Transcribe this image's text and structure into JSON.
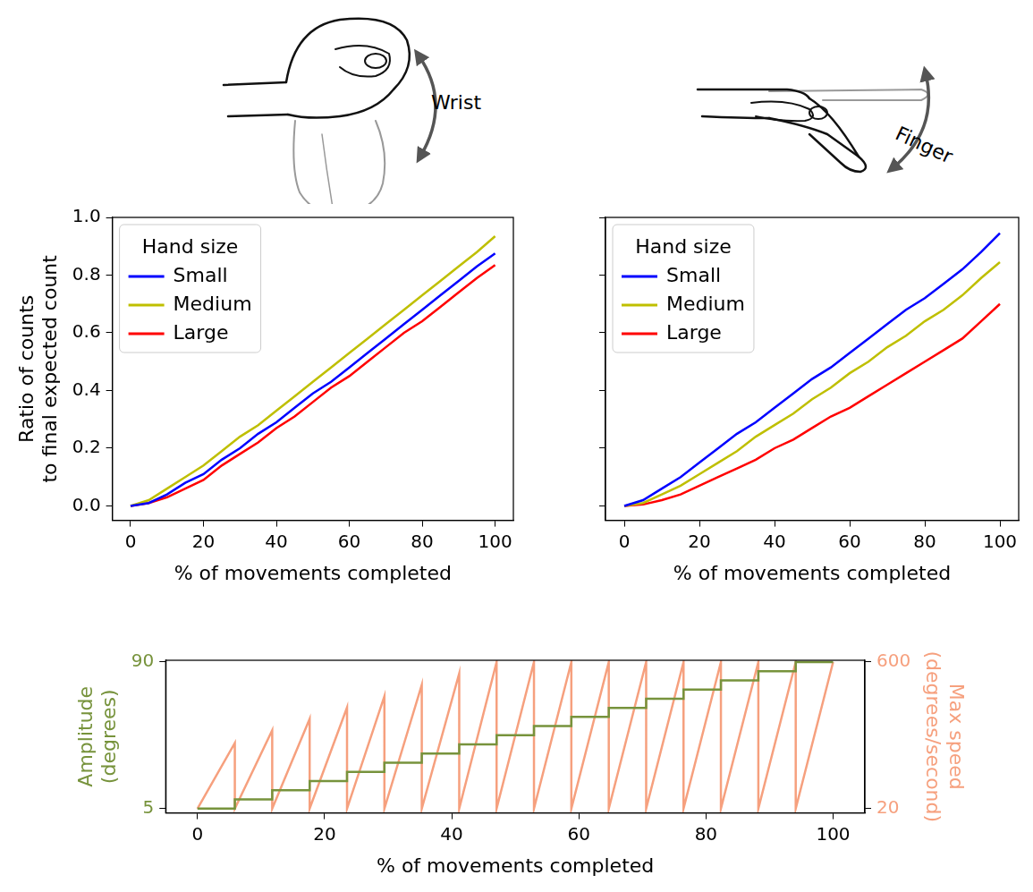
{
  "chart_data": [
    {
      "type": "line",
      "illustration_label": "Wrist",
      "x": [
        0,
        5,
        10,
        15,
        20,
        25,
        30,
        35,
        40,
        45,
        50,
        55,
        60,
        65,
        70,
        75,
        80,
        85,
        90,
        95,
        100
      ],
      "series": [
        {
          "name": "Small",
          "color": "#0000ff",
          "values": [
            0,
            0.01,
            0.04,
            0.08,
            0.11,
            0.16,
            0.2,
            0.25,
            0.29,
            0.34,
            0.39,
            0.43,
            0.48,
            0.53,
            0.58,
            0.63,
            0.68,
            0.73,
            0.78,
            0.83,
            0.875
          ]
        },
        {
          "name": "Medium",
          "color": "#bfbf00",
          "values": [
            0,
            0.02,
            0.06,
            0.1,
            0.14,
            0.19,
            0.24,
            0.28,
            0.33,
            0.38,
            0.43,
            0.48,
            0.53,
            0.58,
            0.63,
            0.68,
            0.73,
            0.78,
            0.83,
            0.88,
            0.935
          ]
        },
        {
          "name": "Large",
          "color": "#ff0000",
          "values": [
            0,
            0.01,
            0.03,
            0.06,
            0.09,
            0.14,
            0.18,
            0.22,
            0.27,
            0.31,
            0.36,
            0.41,
            0.45,
            0.5,
            0.55,
            0.6,
            0.64,
            0.69,
            0.74,
            0.79,
            0.835
          ]
        }
      ],
      "xlabel": "% of movements completed",
      "ylabel": [
        "Ratio of counts",
        "to final expected count"
      ],
      "xlim": [
        -5,
        105
      ],
      "xticks": [
        0,
        20,
        40,
        60,
        80,
        100
      ],
      "ylim": [
        -0.05,
        1.0
      ],
      "yticks": [
        {
          "value": 0,
          "label": "0.0"
        },
        0.2,
        0.4,
        0.6,
        0.8,
        {
          "value": 1,
          "label": "1.0"
        }
      ],
      "grid": false,
      "legend": "upper left",
      "legend_title": "Hand size"
    },
    {
      "type": "line",
      "illustration_label": "Finger",
      "x": [
        0,
        5,
        10,
        15,
        20,
        25,
        30,
        35,
        40,
        45,
        50,
        55,
        60,
        65,
        70,
        75,
        80,
        85,
        90,
        95,
        100
      ],
      "series": [
        {
          "name": "Small",
          "color": "#0000ff",
          "values": [
            0,
            0.02,
            0.06,
            0.1,
            0.15,
            0.2,
            0.25,
            0.29,
            0.34,
            0.39,
            0.44,
            0.48,
            0.53,
            0.58,
            0.63,
            0.68,
            0.72,
            0.77,
            0.82,
            0.88,
            0.945
          ]
        },
        {
          "name": "Medium",
          "color": "#bfbf00",
          "values": [
            0,
            0.01,
            0.04,
            0.07,
            0.11,
            0.15,
            0.19,
            0.24,
            0.28,
            0.32,
            0.37,
            0.41,
            0.46,
            0.5,
            0.55,
            0.59,
            0.64,
            0.68,
            0.73,
            0.79,
            0.845
          ]
        },
        {
          "name": "Large",
          "color": "#ff0000",
          "values": [
            0,
            0.005,
            0.02,
            0.04,
            0.07,
            0.1,
            0.13,
            0.16,
            0.2,
            0.23,
            0.27,
            0.31,
            0.34,
            0.38,
            0.42,
            0.46,
            0.5,
            0.54,
            0.58,
            0.64,
            0.7
          ]
        }
      ],
      "xlabel": "% of movements completed",
      "xlim": [
        -5,
        105
      ],
      "xticks": [
        0,
        20,
        40,
        60,
        80,
        100
      ],
      "ylim": [
        -0.05,
        1.0
      ],
      "yticks": [
        {
          "value": 0,
          "label": "0.0"
        },
        0.2,
        0.4,
        0.6,
        0.8,
        {
          "value": 1,
          "label": "1.0"
        }
      ],
      "tick_labels": "x",
      "grid": false,
      "legend": "upper left",
      "legend_title": "Hand size"
    },
    {
      "type": "line",
      "series": [
        {
          "color": "#77933c",
          "axis": "y",
          "x": [
            0,
            5.88,
            5.88,
            11.76,
            11.76,
            17.65,
            17.65,
            23.53,
            23.53,
            29.41,
            29.41,
            35.29,
            35.29,
            41.18,
            41.18,
            47.06,
            47.06,
            52.94,
            52.94,
            58.82,
            58.82,
            64.71,
            64.71,
            70.59,
            70.59,
            76.47,
            76.47,
            82.35,
            82.35,
            88.24,
            88.24,
            94.12,
            94.12,
            100
          ],
          "values": [
            5,
            5,
            10.31,
            10.31,
            15.63,
            15.63,
            20.94,
            20.94,
            26.25,
            26.25,
            31.56,
            31.56,
            36.88,
            36.88,
            42.19,
            42.19,
            47.5,
            47.5,
            52.81,
            52.81,
            58.13,
            58.13,
            63.44,
            63.44,
            68.75,
            68.75,
            74.06,
            74.06,
            79.38,
            79.38,
            84.69,
            84.69,
            90,
            90
          ]
        },
        {
          "color": "#f6a07e",
          "axis": "y2",
          "x": [
            0,
            5.88,
            5.88,
            11.76,
            11.76,
            17.65,
            17.65,
            23.53,
            23.53,
            29.41,
            29.41,
            35.29,
            35.29,
            41.18,
            41.18,
            47.06,
            47.06,
            52.94,
            52.94,
            58.82,
            58.82,
            64.71,
            64.71,
            70.59,
            70.59,
            76.47,
            76.47,
            82.35,
            82.35,
            88.24,
            88.24,
            94.12,
            94.12,
            100
          ],
          "values": [
            20,
            280,
            20,
            330,
            20,
            375,
            20,
            420,
            20,
            465,
            20,
            510,
            20,
            555,
            20,
            600,
            20,
            600,
            20,
            600,
            20,
            600,
            20,
            600,
            20,
            600,
            20,
            600,
            20,
            600,
            20,
            600,
            20,
            600
          ]
        }
      ],
      "xlabel": "% of movements completed",
      "ylabel": [
        "Amplitude",
        "(degrees)"
      ],
      "y2label": [
        "Max speed",
        "(degrees/second)"
      ],
      "xlim": [
        -5,
        105
      ],
      "xticks": [
        0,
        20,
        40,
        60,
        80,
        100
      ],
      "ylim": [
        2.5,
        91
      ],
      "yticks": [
        5,
        90
      ],
      "y2lim": [
        3,
        607
      ],
      "y2ticks": [
        20,
        600
      ],
      "grid": false
    }
  ]
}
